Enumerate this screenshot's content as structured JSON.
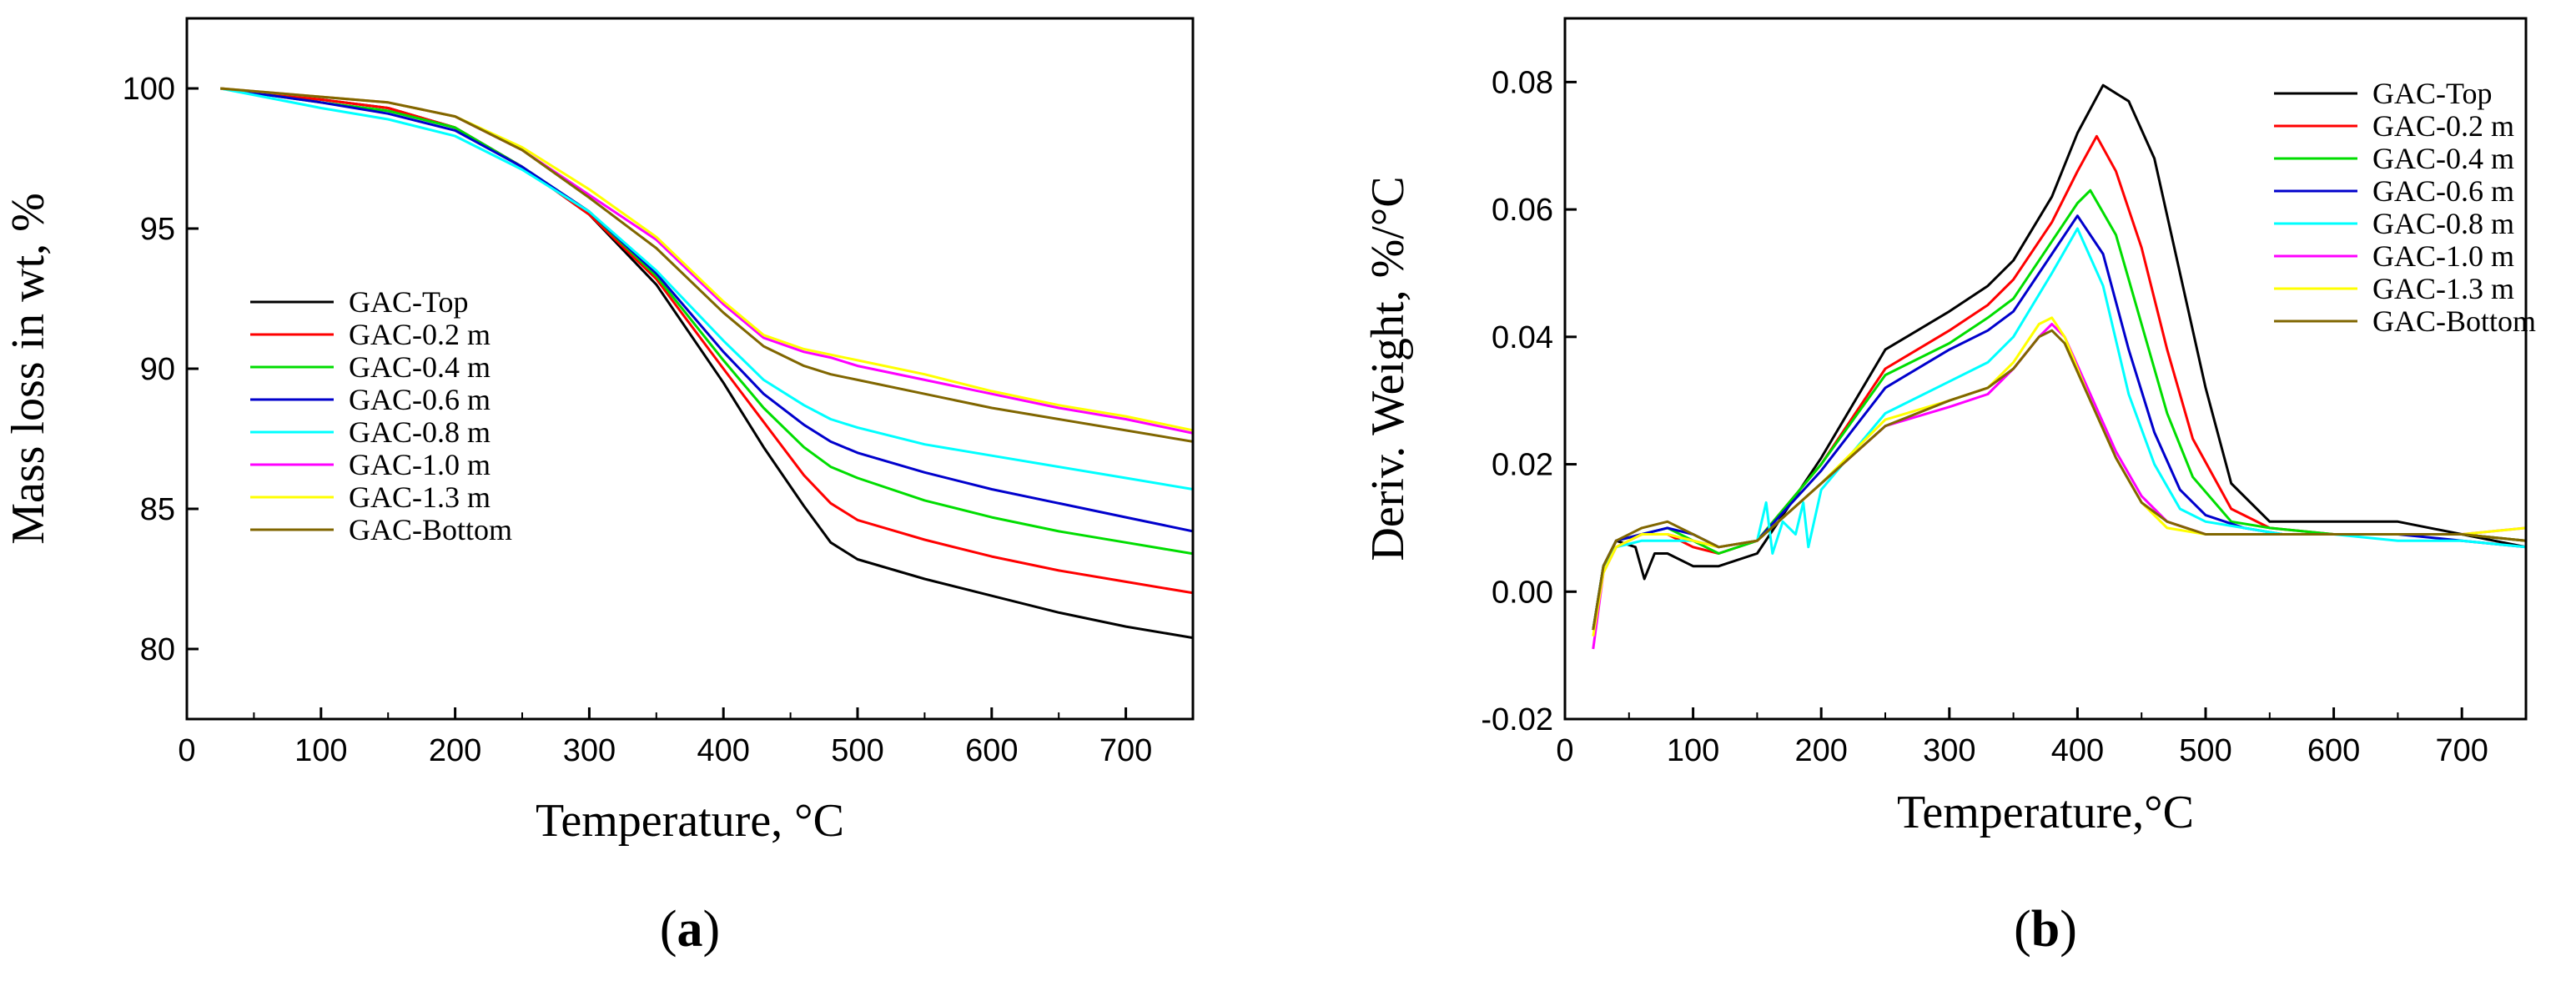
{
  "chart_data": [
    {
      "type": "line",
      "panel": "a",
      "panel_label": {
        "open": "(",
        "letter": "a",
        "close": ")"
      },
      "title": "",
      "xlabel": "Temperature, °C",
      "ylabel": "Mass loss in wt, %",
      "xlim": [
        0,
        750
      ],
      "ylim": [
        77.5,
        102.5
      ],
      "xticks": [
        0,
        100,
        200,
        300,
        400,
        500,
        600,
        700
      ],
      "yticks": [
        80,
        85,
        90,
        95,
        100
      ],
      "legend_position": "middle-left",
      "series": [
        {
          "name": "GAC-Top",
          "color": "#000000",
          "x": [
            25,
            100,
            150,
            200,
            250,
            300,
            350,
            400,
            430,
            460,
            480,
            500,
            550,
            600,
            650,
            700,
            750
          ],
          "y": [
            100,
            99.6,
            99.3,
            98.6,
            97.2,
            95.5,
            93,
            89.5,
            87.2,
            85.1,
            83.8,
            83.2,
            82.5,
            81.9,
            81.3,
            80.8,
            80.4
          ]
        },
        {
          "name": "GAC-0.2 m",
          "color": "#ff0000",
          "x": [
            25,
            100,
            150,
            200,
            250,
            300,
            350,
            400,
            430,
            460,
            480,
            500,
            550,
            600,
            650,
            700,
            750
          ],
          "y": [
            100,
            99.6,
            99.3,
            98.6,
            97.2,
            95.5,
            93.2,
            90,
            88.1,
            86.2,
            85.2,
            84.6,
            83.9,
            83.3,
            82.8,
            82.4,
            82
          ]
        },
        {
          "name": "GAC-0.4 m",
          "color": "#00dd00",
          "x": [
            25,
            100,
            150,
            200,
            250,
            300,
            350,
            400,
            430,
            460,
            480,
            500,
            550,
            600,
            650,
            700,
            750
          ],
          "y": [
            100,
            99.5,
            99.2,
            98.6,
            97.2,
            95.6,
            93.3,
            90.3,
            88.6,
            87.2,
            86.5,
            86.1,
            85.3,
            84.7,
            84.2,
            83.8,
            83.4
          ]
        },
        {
          "name": "GAC-0.6 m",
          "color": "#0000cc",
          "x": [
            25,
            100,
            150,
            200,
            250,
            300,
            350,
            400,
            430,
            460,
            480,
            500,
            550,
            600,
            650,
            700,
            750
          ],
          "y": [
            100,
            99.5,
            99.1,
            98.5,
            97.2,
            95.6,
            93.4,
            90.6,
            89.1,
            88,
            87.4,
            87,
            86.3,
            85.7,
            85.2,
            84.7,
            84.2
          ]
        },
        {
          "name": "GAC-0.8 m",
          "color": "#00ffff",
          "x": [
            25,
            100,
            150,
            200,
            250,
            300,
            350,
            400,
            430,
            460,
            480,
            500,
            550,
            600,
            650,
            700,
            750
          ],
          "y": [
            100,
            99.3,
            98.9,
            98.3,
            97.1,
            95.6,
            93.5,
            91,
            89.6,
            88.7,
            88.2,
            87.9,
            87.3,
            86.9,
            86.5,
            86.1,
            85.7
          ]
        },
        {
          "name": "GAC-1.0 m",
          "color": "#ff00ff",
          "x": [
            25,
            100,
            150,
            200,
            250,
            300,
            350,
            400,
            430,
            460,
            480,
            500,
            550,
            600,
            650,
            700,
            750
          ],
          "y": [
            100,
            99.7,
            99.5,
            99,
            97.8,
            96.2,
            94.6,
            92.3,
            91.1,
            90.6,
            90.4,
            90.1,
            89.6,
            89.1,
            88.6,
            88.2,
            87.7
          ]
        },
        {
          "name": "GAC-1.3 m",
          "color": "#ffff00",
          "x": [
            25,
            100,
            150,
            200,
            250,
            300,
            350,
            400,
            430,
            460,
            480,
            500,
            550,
            600,
            650,
            700,
            750
          ],
          "y": [
            100,
            99.7,
            99.5,
            99,
            97.9,
            96.4,
            94.7,
            92.4,
            91.2,
            90.7,
            90.5,
            90.3,
            89.8,
            89.2,
            88.7,
            88.3,
            87.8
          ]
        },
        {
          "name": "GAC-Bottom",
          "color": "#806600",
          "x": [
            25,
            100,
            150,
            200,
            250,
            300,
            350,
            400,
            430,
            460,
            480,
            500,
            550,
            600,
            650,
            700,
            750
          ],
          "y": [
            100,
            99.7,
            99.5,
            99,
            97.8,
            96.1,
            94.3,
            92,
            90.8,
            90.1,
            89.8,
            89.6,
            89.1,
            88.6,
            88.2,
            87.8,
            87.4
          ]
        }
      ]
    },
    {
      "type": "line",
      "panel": "b",
      "panel_label": {
        "open": "(",
        "letter": "b",
        "close": ")"
      },
      "title": "",
      "xlabel": "Temperature,°C",
      "ylabel": "Deriv. Weight, %/°C",
      "xlim": [
        0,
        750
      ],
      "ylim": [
        -0.02,
        0.09
      ],
      "xticks": [
        0,
        100,
        200,
        300,
        400,
        500,
        600,
        700
      ],
      "yticks": [
        -0.02,
        0.0,
        0.02,
        0.04,
        0.06,
        0.08
      ],
      "ytick_labels": [
        "-0.02",
        "0.00",
        "0.02",
        "0.04",
        "0.06",
        "0.08"
      ],
      "legend_position": "top-right",
      "series": [
        {
          "name": "GAC-Top",
          "color": "#000000",
          "x": [
            22,
            30,
            40,
            55,
            62,
            70,
            80,
            100,
            120,
            150,
            200,
            250,
            300,
            330,
            350,
            380,
            400,
            420,
            440,
            460,
            480,
            500,
            520,
            550,
            600,
            650,
            700,
            750
          ],
          "y": [
            -0.006,
            0.004,
            0.008,
            0.007,
            0.002,
            0.006,
            0.006,
            0.004,
            0.004,
            0.006,
            0.021,
            0.038,
            0.044,
            0.048,
            0.052,
            0.062,
            0.072,
            0.0795,
            0.077,
            0.068,
            0.05,
            0.032,
            0.017,
            0.011,
            0.011,
            0.011,
            0.009,
            0.007
          ]
        },
        {
          "name": "GAC-0.2 m",
          "color": "#ff0000",
          "x": [
            22,
            30,
            40,
            60,
            80,
            100,
            120,
            150,
            200,
            250,
            300,
            330,
            350,
            380,
            400,
            415,
            430,
            450,
            470,
            490,
            520,
            550,
            600,
            650,
            700,
            750
          ],
          "y": [
            -0.006,
            0.004,
            0.008,
            0.009,
            0.009,
            0.007,
            0.006,
            0.008,
            0.02,
            0.035,
            0.041,
            0.045,
            0.049,
            0.058,
            0.066,
            0.0715,
            0.066,
            0.054,
            0.038,
            0.024,
            0.013,
            0.01,
            0.009,
            0.009,
            0.009,
            0.008
          ]
        },
        {
          "name": "GAC-0.4 m",
          "color": "#00dd00",
          "x": [
            22,
            30,
            40,
            60,
            80,
            100,
            120,
            150,
            200,
            250,
            300,
            330,
            350,
            380,
            400,
            410,
            430,
            450,
            470,
            490,
            520,
            550,
            600,
            650,
            700,
            750
          ],
          "y": [
            -0.006,
            0.004,
            0.008,
            0.009,
            0.01,
            0.008,
            0.006,
            0.008,
            0.02,
            0.034,
            0.039,
            0.043,
            0.046,
            0.055,
            0.061,
            0.063,
            0.056,
            0.042,
            0.028,
            0.018,
            0.011,
            0.01,
            0.009,
            0.009,
            0.009,
            0.008
          ]
        },
        {
          "name": "GAC-0.6 m",
          "color": "#0000cc",
          "x": [
            22,
            30,
            40,
            60,
            80,
            100,
            120,
            150,
            200,
            250,
            300,
            330,
            350,
            380,
            400,
            420,
            440,
            460,
            480,
            500,
            530,
            560,
            600,
            650,
            700,
            750
          ],
          "y": [
            -0.006,
            0.004,
            0.008,
            0.009,
            0.01,
            0.009,
            0.007,
            0.008,
            0.019,
            0.032,
            0.038,
            0.041,
            0.044,
            0.053,
            0.059,
            0.053,
            0.038,
            0.025,
            0.016,
            0.012,
            0.01,
            0.009,
            0.009,
            0.009,
            0.008,
            0.007
          ]
        },
        {
          "name": "GAC-0.8 m",
          "color": "#00ffff",
          "x": [
            22,
            30,
            40,
            60,
            80,
            100,
            120,
            150,
            157,
            162,
            170,
            180,
            186,
            190,
            200,
            250,
            300,
            330,
            350,
            380,
            400,
            420,
            440,
            460,
            480,
            500,
            530,
            560,
            600,
            650,
            700,
            750
          ],
          "y": [
            -0.006,
            0.004,
            0.007,
            0.008,
            0.008,
            0.008,
            0.007,
            0.008,
            0.014,
            0.006,
            0.011,
            0.009,
            0.014,
            0.007,
            0.016,
            0.028,
            0.033,
            0.036,
            0.04,
            0.05,
            0.057,
            0.048,
            0.031,
            0.02,
            0.013,
            0.011,
            0.01,
            0.009,
            0.009,
            0.008,
            0.008,
            0.007
          ]
        },
        {
          "name": "GAC-1.0 m",
          "color": "#ff00ff",
          "x": [
            22,
            30,
            40,
            60,
            80,
            100,
            120,
            150,
            200,
            250,
            300,
            330,
            350,
            370,
            380,
            390,
            410,
            430,
            450,
            470,
            500,
            550,
            600,
            650,
            700,
            750
          ],
          "y": [
            -0.009,
            0.003,
            0.007,
            0.009,
            0.009,
            0.008,
            0.007,
            0.008,
            0.017,
            0.026,
            0.029,
            0.031,
            0.035,
            0.04,
            0.042,
            0.04,
            0.031,
            0.022,
            0.015,
            0.011,
            0.009,
            0.009,
            0.009,
            0.009,
            0.009,
            0.01
          ]
        },
        {
          "name": "GAC-1.3 m",
          "color": "#ffff00",
          "x": [
            22,
            30,
            40,
            60,
            80,
            100,
            120,
            150,
            200,
            250,
            300,
            330,
            350,
            370,
            380,
            390,
            410,
            430,
            450,
            470,
            500,
            550,
            600,
            650,
            700,
            750
          ],
          "y": [
            -0.007,
            0.003,
            0.007,
            0.009,
            0.009,
            0.008,
            0.007,
            0.008,
            0.017,
            0.027,
            0.03,
            0.032,
            0.036,
            0.042,
            0.043,
            0.04,
            0.03,
            0.021,
            0.014,
            0.01,
            0.009,
            0.009,
            0.009,
            0.009,
            0.009,
            0.01
          ]
        },
        {
          "name": "GAC-Bottom",
          "color": "#806600",
          "x": [
            22,
            30,
            40,
            60,
            80,
            100,
            120,
            150,
            200,
            250,
            300,
            330,
            350,
            370,
            380,
            390,
            410,
            430,
            450,
            470,
            500,
            550,
            600,
            650,
            700,
            750
          ],
          "y": [
            -0.006,
            0.004,
            0.008,
            0.01,
            0.011,
            0.009,
            0.007,
            0.008,
            0.017,
            0.026,
            0.03,
            0.032,
            0.035,
            0.04,
            0.041,
            0.039,
            0.03,
            0.021,
            0.014,
            0.011,
            0.009,
            0.009,
            0.009,
            0.009,
            0.009,
            0.008
          ]
        }
      ]
    }
  ]
}
